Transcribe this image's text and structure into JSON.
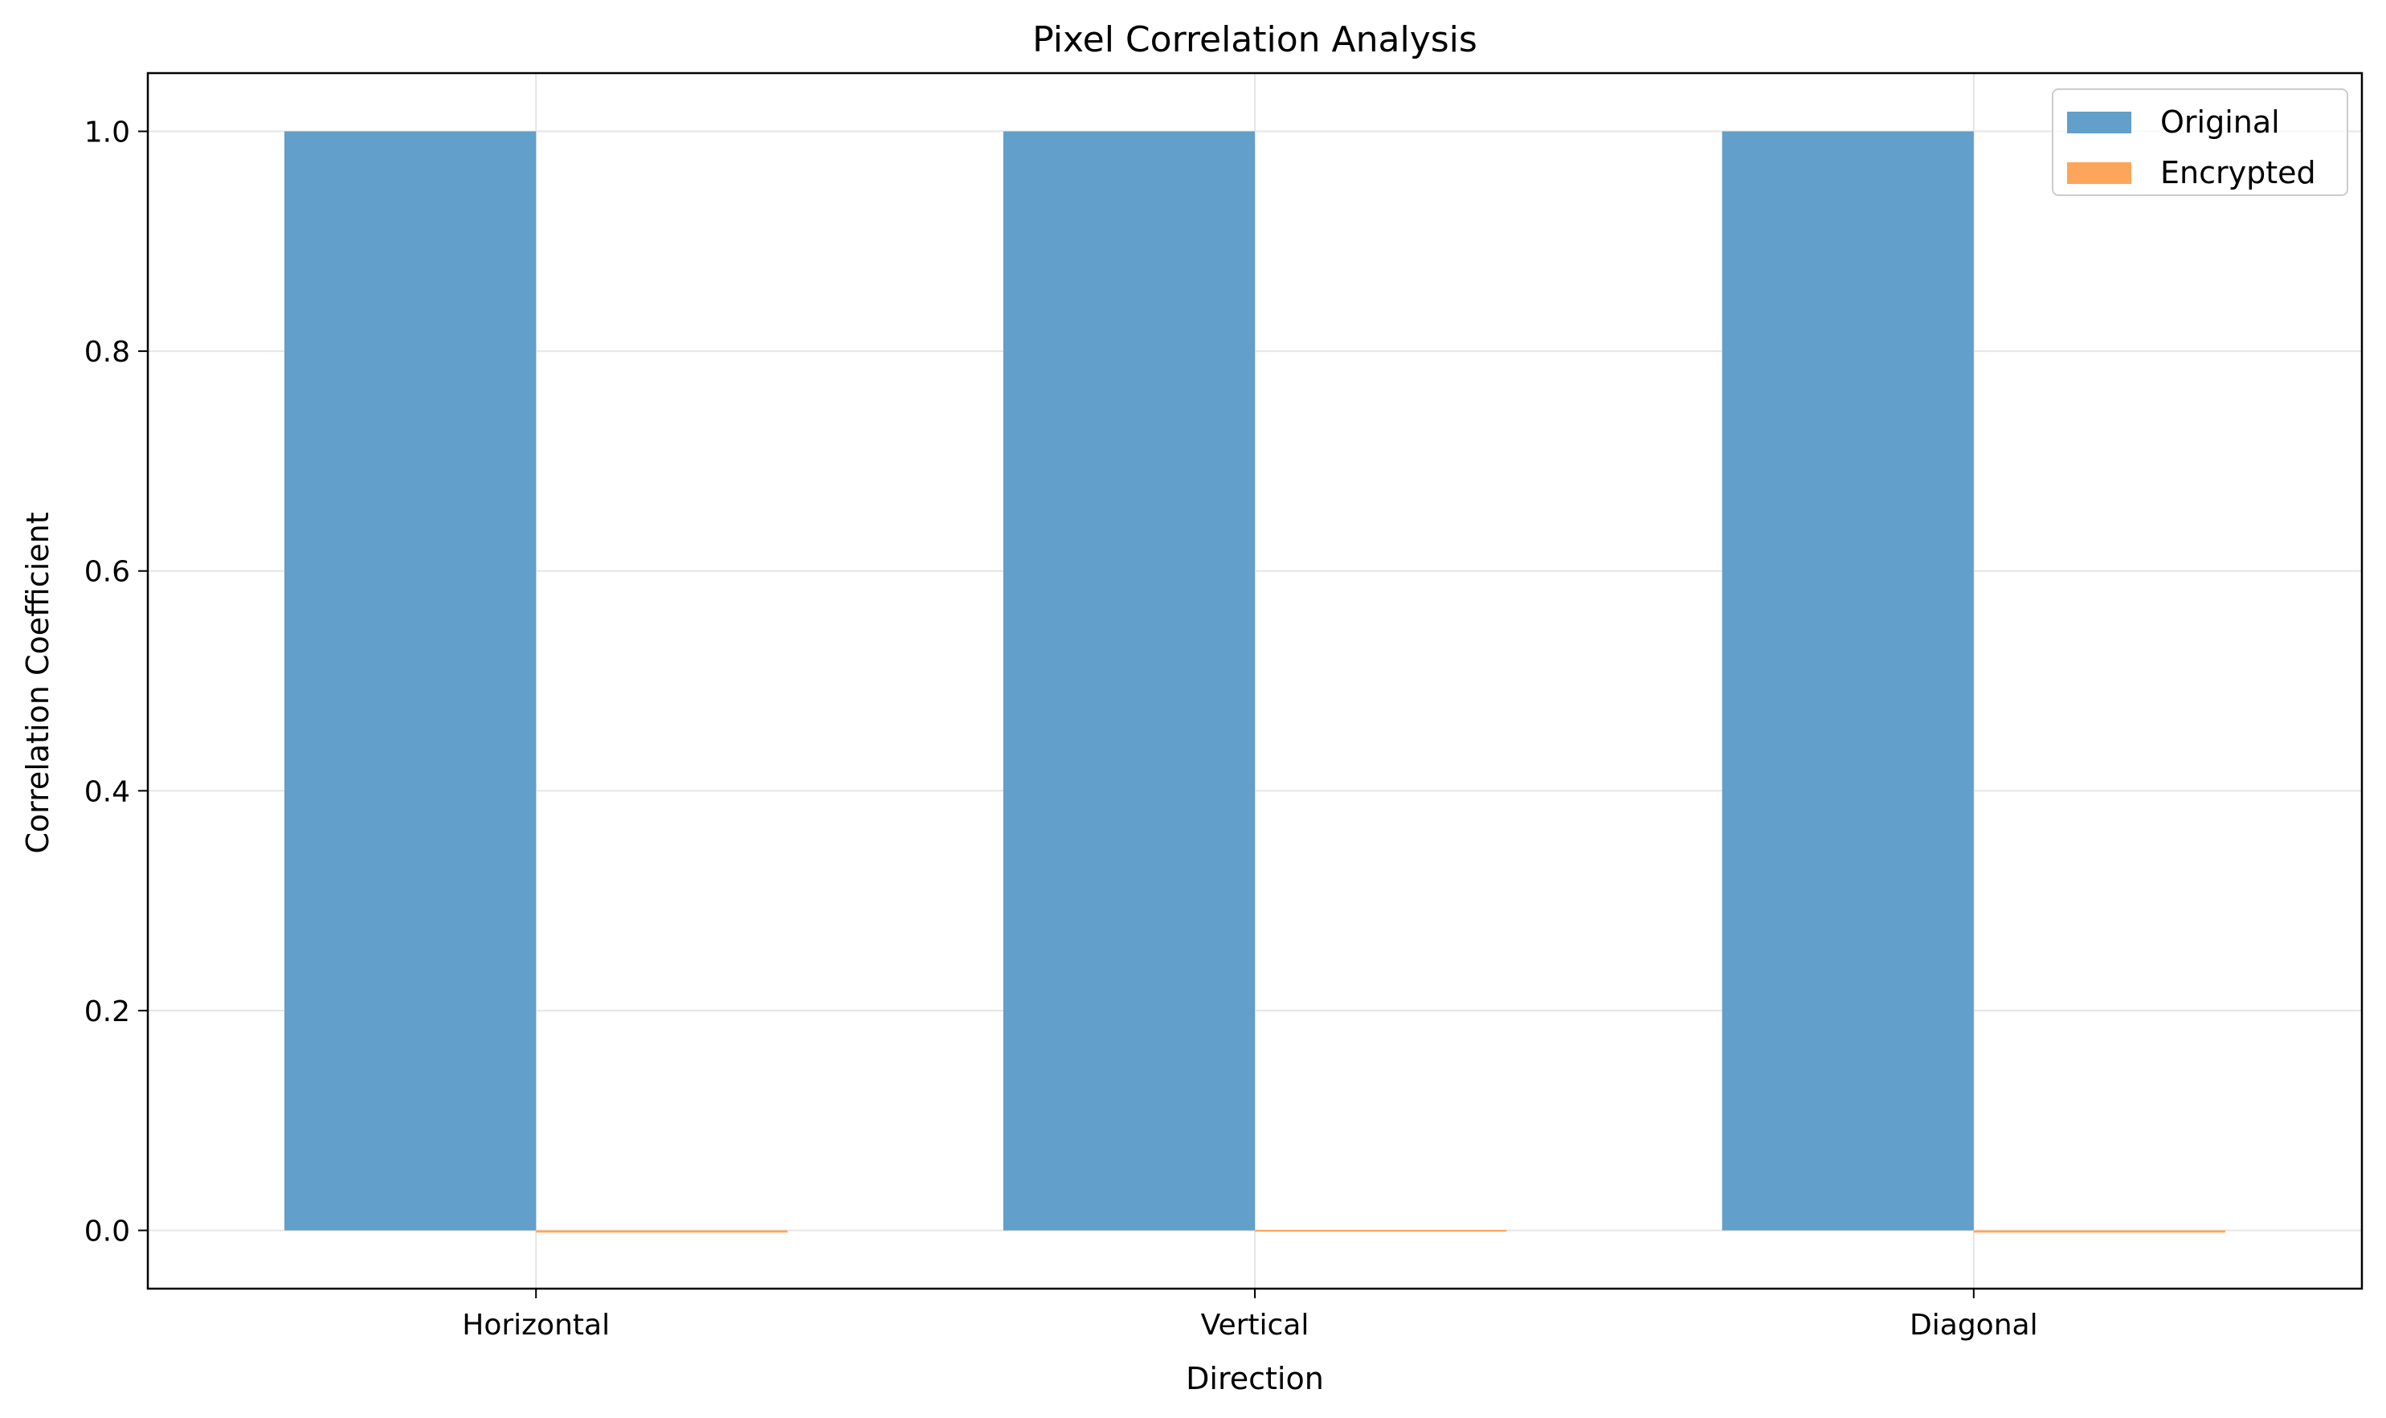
{
  "chart_data": {
    "type": "bar",
    "title": "Pixel Correlation Analysis",
    "xlabel": "Direction",
    "ylabel": "Correlation Coefficient",
    "categories": [
      "Horizontal",
      "Vertical",
      "Diagonal"
    ],
    "series": [
      {
        "name": "Original",
        "values": [
          1.0,
          1.0,
          1.0
        ],
        "color": "#629fca"
      },
      {
        "name": "Encrypted",
        "values": [
          -0.002,
          0.0,
          -0.002
        ],
        "color": "#fda55b"
      }
    ],
    "ylim": [
      -0.053,
      1.053
    ],
    "yticks": [
      "0.0",
      "0.2",
      "0.4",
      "0.6",
      "0.8",
      "1.0"
    ],
    "grid": true,
    "legend_position": "top-right"
  }
}
